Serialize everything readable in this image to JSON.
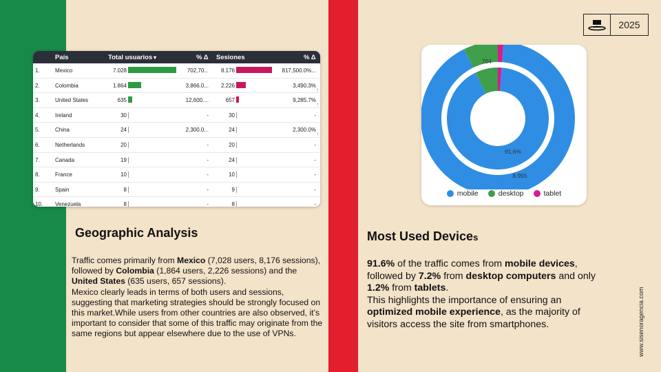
{
  "brand": {
    "year": "2025",
    "logo_icon": "top-hat-icon"
  },
  "table": {
    "headers": {
      "country": "País",
      "users": "Total usuarios",
      "users_delta": "% Δ",
      "sessions": "Sesiones",
      "sessions_delta": "% Δ"
    },
    "max_users": 7028,
    "max_sessions": 8176,
    "rows": [
      {
        "rank": "1.",
        "country": "Mexico",
        "users": "7.028",
        "users_value": 7028,
        "users_delta": "702,70...",
        "sessions": "8.176",
        "sessions_value": 8176,
        "sessions_delta": "817,500.0%..."
      },
      {
        "rank": "2.",
        "country": "Colombia",
        "users": "1.864",
        "users_value": 1864,
        "users_delta": "3,866.0...",
        "sessions": "2.226",
        "sessions_value": 2226,
        "sessions_delta": "3,490.3% ↑"
      },
      {
        "rank": "3.",
        "country": "United States",
        "users": "635",
        "users_value": 635,
        "users_delta": "12,600....",
        "sessions": "657",
        "sessions_value": 657,
        "sessions_delta": "9,285.7% ↑"
      },
      {
        "rank": "4.",
        "country": "Ireland",
        "users": "30",
        "users_value": 30,
        "users_delta": "-",
        "sessions": "30",
        "sessions_value": 30,
        "sessions_delta": "-"
      },
      {
        "rank": "5.",
        "country": "China",
        "users": "24",
        "users_value": 24,
        "users_delta": "2,300.0...",
        "sessions": "24",
        "sessions_value": 24,
        "sessions_delta": "2,300.0% ↑"
      },
      {
        "rank": "6.",
        "country": "Netherlands",
        "users": "20",
        "users_value": 20,
        "users_delta": "-",
        "sessions": "20",
        "sessions_value": 20,
        "sessions_delta": "-"
      },
      {
        "rank": "7.",
        "country": "Canada",
        "users": "19",
        "users_value": 19,
        "users_delta": "-",
        "sessions": "24",
        "sessions_value": 24,
        "sessions_delta": "-"
      },
      {
        "rank": "8.",
        "country": "France",
        "users": "10",
        "users_value": 10,
        "users_delta": "-",
        "sessions": "10",
        "sessions_value": 10,
        "sessions_delta": "-"
      },
      {
        "rank": "9.",
        "country": "Spain",
        "users": "8",
        "users_value": 8,
        "users_delta": "-",
        "sessions": "9",
        "sessions_value": 9,
        "sessions_delta": "-"
      },
      {
        "rank": "10.",
        "country": "Venezuela",
        "users": "8",
        "users_value": 8,
        "users_delta": "-",
        "sessions": "8",
        "sessions_value": 8,
        "sessions_delta": "-"
      }
    ],
    "colors": {
      "users_bar": "#2e9a42",
      "sessions_bar": "#c8175f",
      "header_bg": "#2b2f3a"
    }
  },
  "geo": {
    "title": "Geographic Analysis",
    "p1": [
      {
        "t": "Traffic comes primarily from ",
        "b": false
      },
      {
        "t": "Mexico",
        "b": true
      },
      {
        "t": " (7,028 users, 8,176 sessions), followed by ",
        "b": false
      },
      {
        "t": "Colombia",
        "b": true
      },
      {
        "t": " (1,864 users, 2,226 sessions) and the ",
        "b": false
      },
      {
        "t": "United States",
        "b": true
      },
      {
        "t": " (635 users, 657 sessions).",
        "b": false
      }
    ],
    "p2": "Mexico clearly leads in terms of both users and sessions, suggesting that marketing strategies should be strongly focused on this market.While users from other countries are also observed, it’s important to consider that some of this traffic may originate from the same regions but appear elsewhere due to the use of VPNs."
  },
  "chart_data": {
    "type": "pie",
    "variant": "double-donut",
    "rings": [
      {
        "ring": "outer",
        "values": {
          "mobile": 8955,
          "desktop": 704,
          "tablet": 117
        }
      },
      {
        "ring": "inner",
        "values": {
          "mobile": 91.6,
          "desktop": 7.2,
          "tablet": 1.2
        }
      }
    ],
    "data_labels": {
      "outer_mobile": "8.955",
      "outer_desktop": "704",
      "inner_mobile": "91,6%"
    },
    "legend": [
      "mobile",
      "desktop",
      "tablet"
    ],
    "legend_position": "bottom",
    "colors": {
      "mobile": "#2f8ee3",
      "desktop": "#3f9f4a",
      "tablet": "#d81b8f"
    }
  },
  "devices": {
    "title_main": "Most Used Device",
    "title_suffix": "s",
    "p1": [
      {
        "t": "91.6%",
        "b": true
      },
      {
        "t": " of the traffic comes from ",
        "b": false
      },
      {
        "t": "mobile devices",
        "b": true
      },
      {
        "t": ", followed by ",
        "b": false
      },
      {
        "t": "7.2%",
        "b": true
      },
      {
        "t": " from ",
        "b": false
      },
      {
        "t": "desktop computers",
        "b": true
      },
      {
        "t": " and only ",
        "b": false
      },
      {
        "t": "1.2%",
        "b": true
      },
      {
        "t": " from ",
        "b": false
      },
      {
        "t": "tablets",
        "b": true
      },
      {
        "t": ".",
        "b": false
      }
    ],
    "p2": [
      {
        "t": "This highlights the importance of ensuring an ",
        "b": false
      },
      {
        "t": "optimized mobile experience",
        "b": true
      },
      {
        "t": ", as the majority of visitors access the site from smartphones.",
        "b": false
      }
    ]
  },
  "website": "www.sisenoragencia.com"
}
